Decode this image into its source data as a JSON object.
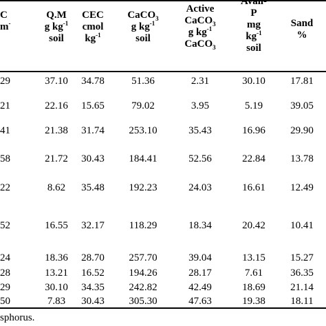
{
  "header": {
    "col0": {
      "line1": "C",
      "line2": "m",
      "line2_sup": "-"
    },
    "qm": {
      "line1": "Q.M",
      "line2_pre": "g kg",
      "line2_sup": "-1",
      "line3": "soil"
    },
    "cec": {
      "line1": "CEC",
      "line2": "cmol",
      "line3_pre": "kg",
      "line3_sup": "-1"
    },
    "caco3": {
      "line1_pre": "CaCO",
      "line1_sub": "3",
      "line2_pre": "g kg",
      "line2_sup": "-1",
      "line3": "soil"
    },
    "active": {
      "line1": "Active",
      "line2_pre": "CaCO",
      "line2_sub": "3",
      "line3_pre": "g kg",
      "line3_sup": "-1",
      "line4_pre": "CaCO",
      "line4_sub": "3"
    },
    "availp": {
      "line1": "Avail-",
      "line2": "P",
      "line3": "mg",
      "line4_pre": "kg",
      "line4_sup": "-1",
      "line5": "soil"
    },
    "sand": {
      "line1": "Sand",
      "line2": "%"
    }
  },
  "rows": [
    {
      "c0": "29",
      "qm": "37.10",
      "cec": "34.78",
      "caco3": "51.36",
      "active": "2.31",
      "availp": "30.10",
      "sand": "17.81"
    },
    {
      "c0": "21",
      "qm": "22.16",
      "cec": "15.65",
      "caco3": "79.02",
      "active": "3.95",
      "availp": "5.19",
      "sand": "39.05"
    },
    {
      "c0": "41",
      "qm": "21.38",
      "cec": "31.74",
      "caco3": "253.10",
      "active": "35.43",
      "availp": "16.96",
      "sand": "29.90"
    },
    {
      "c0": "58",
      "qm": "21.72",
      "cec": "30.43",
      "caco3": "184.41",
      "active": "52.56",
      "availp": "22.84",
      "sand": "13.78"
    },
    {
      "c0": "22",
      "qm": "8.62",
      "cec": "35.48",
      "caco3": "192.23",
      "active": "24.03",
      "availp": "16.61",
      "sand": "12.49"
    },
    {
      "c0": "52",
      "qm": "16.55",
      "cec": "32.17",
      "caco3": "118.29",
      "active": "18.34",
      "availp": "20.42",
      "sand": "10.41"
    },
    {
      "c0": "24",
      "qm": "18.36",
      "cec": "28.70",
      "caco3": "257.70",
      "active": "39.04",
      "availp": "13.15",
      "sand": "15.27"
    },
    {
      "c0": "28",
      "qm": "13.21",
      "cec": "16.52",
      "caco3": "194.26",
      "active": "28.17",
      "availp": "7.61",
      "sand": "36.35"
    },
    {
      "c0": "29",
      "qm": "30.10",
      "cec": "34.35",
      "caco3": "242.82",
      "active": "42.49",
      "availp": "18.69",
      "sand": "21.14"
    },
    {
      "c0": "50",
      "qm": "7.83",
      "cec": "30.43",
      "caco3": "305.30",
      "active": "47.63",
      "availp": "19.38",
      "sand": "18.11"
    }
  ],
  "footnote": "sphorus."
}
